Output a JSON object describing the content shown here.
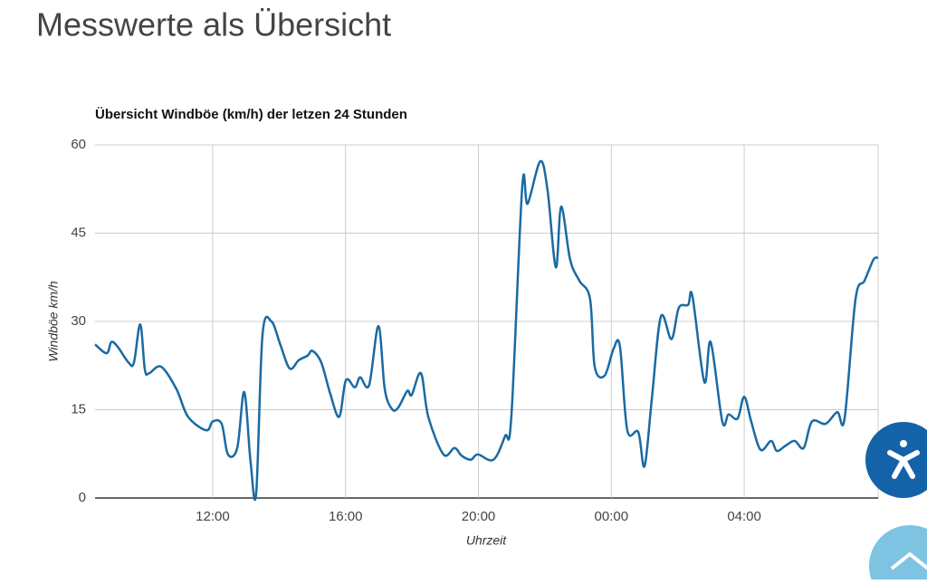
{
  "heading": "Messwerte als Übersicht",
  "chart_data": {
    "type": "line",
    "title": "Übersicht Windböe (km/h) der letzen 24 Stunden",
    "x_label": "Uhrzeit",
    "y_label": "Windböe km/h",
    "x": [
      8.46,
      8.81,
      8.95,
      9.14,
      9.47,
      9.63,
      9.82,
      9.96,
      10.09,
      10.45,
      10.91,
      11.26,
      11.81,
      12.0,
      12.27,
      12.46,
      12.74,
      12.95,
      13.14,
      13.31,
      13.5,
      13.77,
      14.04,
      14.32,
      14.59,
      14.86,
      15.0,
      15.27,
      15.54,
      15.81,
      16.01,
      16.28,
      16.44,
      16.71,
      16.99,
      17.18,
      17.4,
      17.59,
      17.86,
      17.99,
      18.27,
      18.49,
      18.95,
      19.28,
      19.49,
      19.77,
      19.98,
      20.45,
      20.8,
      20.99,
      21.32,
      21.48,
      21.86,
      22.08,
      22.33,
      22.49,
      22.76,
      23.04,
      23.36,
      23.5,
      23.8,
      24.07,
      24.26,
      24.48,
      24.81,
      25.0,
      25.22,
      25.49,
      25.81,
      26.03,
      26.31,
      26.44,
      26.8,
      26.99,
      27.34,
      27.53,
      27.8,
      28.0,
      28.21,
      28.49,
      28.81,
      28.98,
      29.25,
      29.52,
      29.79,
      30.04,
      30.45,
      30.8,
      31.02,
      31.35,
      31.62,
      31.89,
      32.03
    ],
    "series": [
      {
        "name": "Windböe",
        "color": "#1a6aa3",
        "values": [
          26.1,
          24.6,
          26.5,
          25.7,
          23,
          23,
          29.5,
          21.8,
          21.2,
          22.3,
          18.5,
          13.8,
          11.5,
          13,
          12.6,
          7.4,
          8.5,
          18,
          6.2,
          0.8,
          27.7,
          30,
          26,
          22,
          23.4,
          24.2,
          25,
          23,
          17.7,
          13.8,
          20,
          18.8,
          20.5,
          19.2,
          29.2,
          18.5,
          15.1,
          15.4,
          18.2,
          17.5,
          21.2,
          13.8,
          7.4,
          8.5,
          7.2,
          6.5,
          7.4,
          6.5,
          10.5,
          13.8,
          53,
          50,
          57.2,
          52.3,
          39.2,
          49.5,
          40.5,
          36.9,
          33.8,
          22.3,
          20.8,
          25.4,
          25.7,
          11.5,
          11.2,
          5.4,
          16.9,
          30.8,
          27,
          32.3,
          32.8,
          34.3,
          19.7,
          26.5,
          13,
          14.2,
          13.5,
          17.2,
          13,
          8.2,
          9.7,
          8,
          8.9,
          9.7,
          8.5,
          13,
          12.6,
          14.6,
          13.5,
          33.8,
          36.9,
          40.5,
          40.8
        ]
      }
    ],
    "xlim": [
      8.46,
      32.03
    ],
    "xticks": [
      {
        "value": 12,
        "label": "12:00"
      },
      {
        "value": 16,
        "label": "16:00"
      },
      {
        "value": 20,
        "label": "20:00"
      },
      {
        "value": 24,
        "label": "00:00"
      },
      {
        "value": 28,
        "label": "04:00"
      }
    ],
    "ylim": [
      0,
      60
    ],
    "yticks": [
      0,
      15,
      30,
      45,
      60
    ],
    "grid": true
  }
}
